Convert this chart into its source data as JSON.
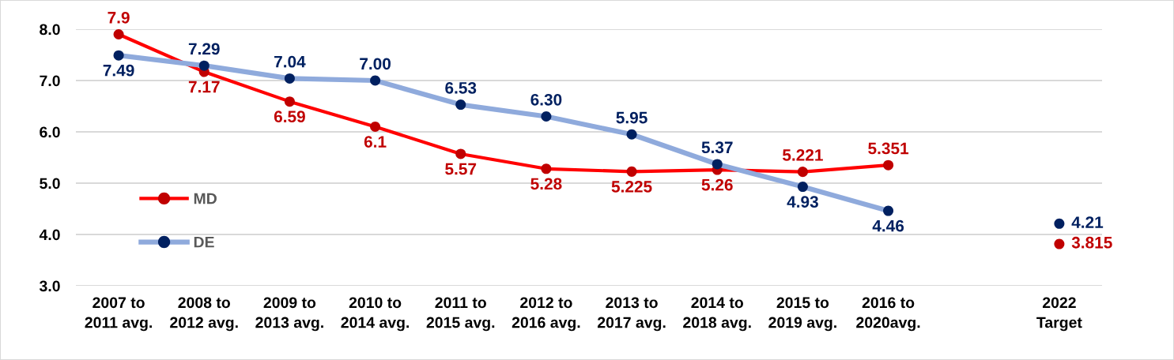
{
  "chart_data": {
    "type": "line",
    "categories": [
      "2007 to\n2011 avg.",
      "2008 to\n2012 avg.",
      "2009 to\n2013 avg.",
      "2010 to\n2014 avg.",
      "2011 to\n2015 avg.",
      "2012 to\n2016 avg.",
      "2013 to\n2017 avg.",
      "2014 to\n2018 avg.",
      "2015 to\n2019 avg.",
      "2016 to\n2020avg.",
      null,
      "2022\nTarget"
    ],
    "ylim": [
      3,
      8
    ],
    "yticks": [
      {
        "value": 3,
        "label": "3.0"
      },
      {
        "value": 4,
        "label": "4.0"
      },
      {
        "value": 5,
        "label": "5.0"
      },
      {
        "value": 6,
        "label": "6.0"
      },
      {
        "value": 7,
        "label": "7.0"
      },
      {
        "value": 8,
        "label": "8.0"
      }
    ],
    "grid": "y",
    "legend": "left",
    "marker": "circle",
    "line_style": "solid",
    "series": [
      {
        "name": "MD",
        "color": "#ff0000",
        "colors": [
          "#c00000",
          "#c00000",
          "#c00000",
          "#c00000",
          "#c00000",
          "#c00000",
          "#c00000",
          "#c00000",
          "#c00000",
          "#c00000",
          null,
          "#c00000"
        ],
        "values": [
          7.9,
          7.17,
          6.59,
          6.1,
          5.57,
          5.28,
          5.225,
          5.26,
          5.221,
          5.351,
          null,
          3.815
        ],
        "value_labels": [
          "7.9",
          "7.17",
          "6.59",
          "6.1",
          "5.57",
          "5.28",
          "5.225",
          "5.26",
          "5.221",
          "5.351",
          null,
          "3.815"
        ]
      },
      {
        "name": "DE",
        "color": "#8faadc",
        "colors": [
          "#002060",
          "#002060",
          "#002060",
          "#002060",
          "#002060",
          "#002060",
          "#002060",
          "#002060",
          "#002060",
          "#002060",
          null,
          "#002060"
        ],
        "values": [
          7.49,
          7.29,
          7.04,
          7.0,
          6.53,
          6.3,
          5.95,
          5.37,
          4.93,
          4.46,
          null,
          4.21
        ],
        "value_labels": [
          "7.49",
          "7.29",
          "7.04",
          "7.00",
          "6.53",
          "6.30",
          "5.95",
          "5.37",
          "4.93",
          "4.46",
          null,
          "4.21"
        ]
      }
    ]
  }
}
